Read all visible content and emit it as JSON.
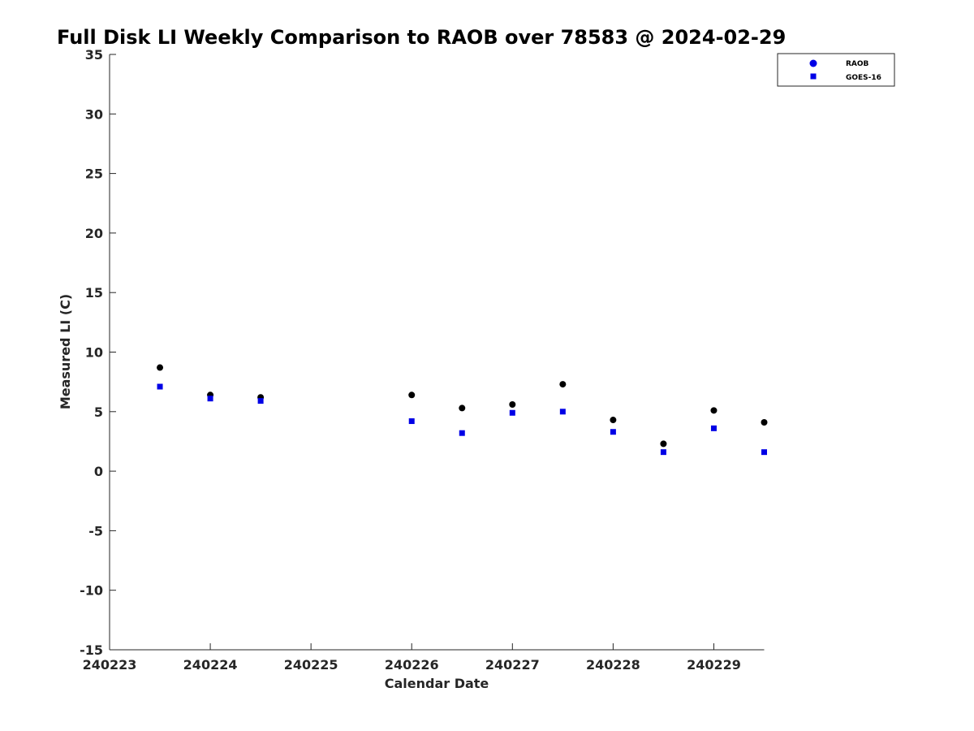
{
  "chart_data": {
    "type": "scatter",
    "title": "Full Disk LI Weekly Comparison to RAOB over 78583 @ 2024-02-29",
    "xlabel": "Calendar Date",
    "ylabel": "Measured LI (C)",
    "xlim": [
      0,
      6.5
    ],
    "ylim": [
      -15,
      35
    ],
    "x_ticks": [
      {
        "value": 0,
        "label": "240223"
      },
      {
        "value": 1,
        "label": "240224"
      },
      {
        "value": 2,
        "label": "240225"
      },
      {
        "value": 3,
        "label": "240226"
      },
      {
        "value": 4,
        "label": "240227"
      },
      {
        "value": 5,
        "label": "240228"
      },
      {
        "value": 6,
        "label": "240229"
      }
    ],
    "y_ticks": [
      35,
      30,
      25,
      20,
      15,
      10,
      5,
      0,
      -5,
      -10,
      -15
    ],
    "grid": false,
    "legend_position": "top-right",
    "series": [
      {
        "name": "RAOB",
        "marker": "circle",
        "color": "#000000",
        "legend_color": "#0000e6",
        "points": [
          {
            "x": 0.5,
            "y": 8.7
          },
          {
            "x": 1.0,
            "y": 6.4
          },
          {
            "x": 1.5,
            "y": 6.2
          },
          {
            "x": 3.0,
            "y": 6.4
          },
          {
            "x": 3.5,
            "y": 5.3
          },
          {
            "x": 4.0,
            "y": 5.6
          },
          {
            "x": 4.5,
            "y": 7.3
          },
          {
            "x": 5.0,
            "y": 4.3
          },
          {
            "x": 5.5,
            "y": 2.3
          },
          {
            "x": 6.0,
            "y": 5.1
          },
          {
            "x": 6.5,
            "y": 4.1
          }
        ]
      },
      {
        "name": "GOES-16",
        "marker": "square",
        "color": "#0000e6",
        "legend_color": "#0000e6",
        "points": [
          {
            "x": 0.5,
            "y": 7.1
          },
          {
            "x": 1.0,
            "y": 6.1
          },
          {
            "x": 1.5,
            "y": 5.9
          },
          {
            "x": 3.0,
            "y": 4.2
          },
          {
            "x": 3.5,
            "y": 3.2
          },
          {
            "x": 4.0,
            "y": 4.9
          },
          {
            "x": 4.5,
            "y": 5.0
          },
          {
            "x": 5.0,
            "y": 3.3
          },
          {
            "x": 5.5,
            "y": 1.6
          },
          {
            "x": 6.0,
            "y": 3.6
          },
          {
            "x": 6.5,
            "y": 1.6
          }
        ]
      }
    ]
  }
}
